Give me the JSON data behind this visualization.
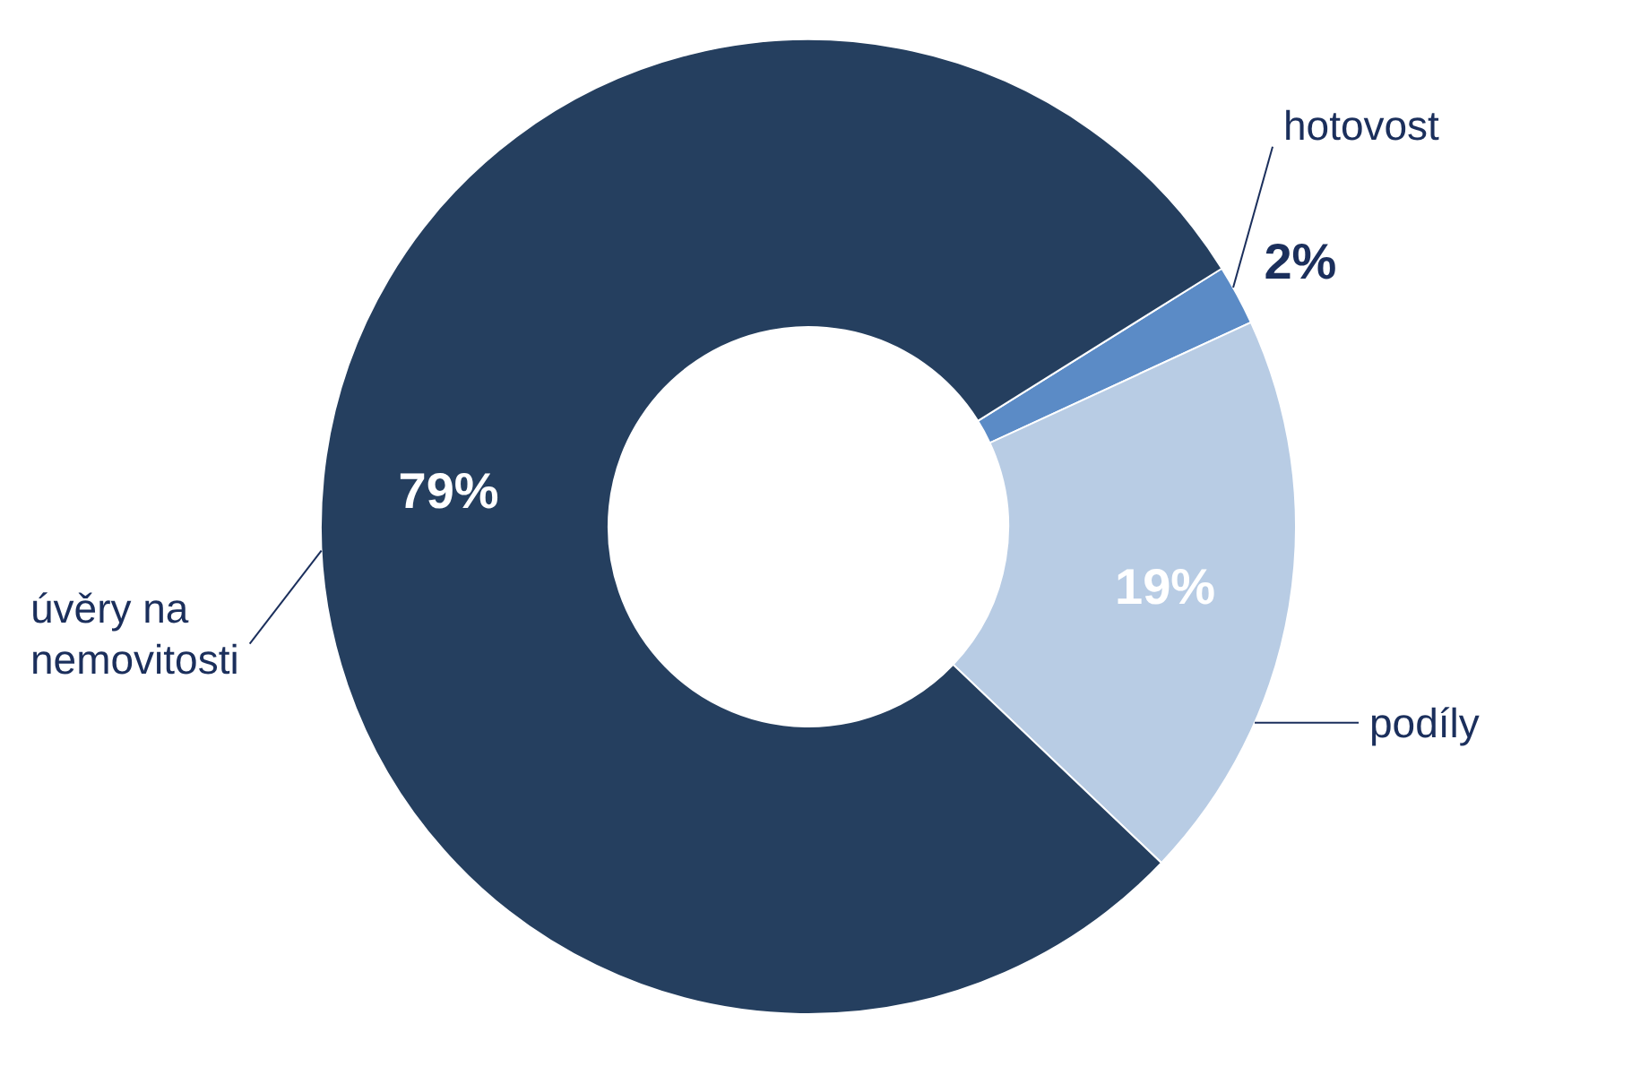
{
  "chart_data": {
    "type": "donut",
    "categories": [
      "hotovost",
      "podíly",
      "úvěry na nemovitosti"
    ],
    "values": [
      2,
      19,
      79
    ],
    "colors": [
      "#5b8bc6",
      "#b8cce4",
      "#253f5f"
    ],
    "value_labels": [
      "2%",
      "19%",
      "79%"
    ]
  }
}
